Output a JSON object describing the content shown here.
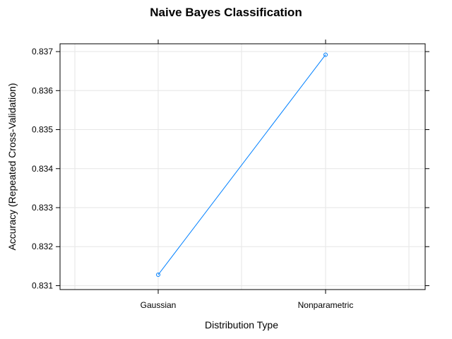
{
  "chart_data": {
    "type": "line",
    "title": "Naive Bayes Classification",
    "xlabel": "Distribution Type",
    "ylabel": "Accuracy (Repeated Cross-Validation)",
    "categories": [
      "Gaussian",
      "Nonparametric"
    ],
    "series": [
      {
        "values": [
          0.83128,
          0.83692
        ]
      }
    ],
    "ylim": [
      0.8309,
      0.8372
    ],
    "yticks": [
      0.831,
      0.832,
      0.833,
      0.834,
      0.835,
      0.836,
      0.837
    ],
    "ytick_labels": [
      "0.831",
      "0.832",
      "0.833",
      "0.834",
      "0.835",
      "0.836",
      "0.837"
    ],
    "grid": true,
    "markers": "open-circle",
    "colors": {
      "series": "#0080ff",
      "grid": "#e6e6e6",
      "frame": "#000000"
    }
  }
}
